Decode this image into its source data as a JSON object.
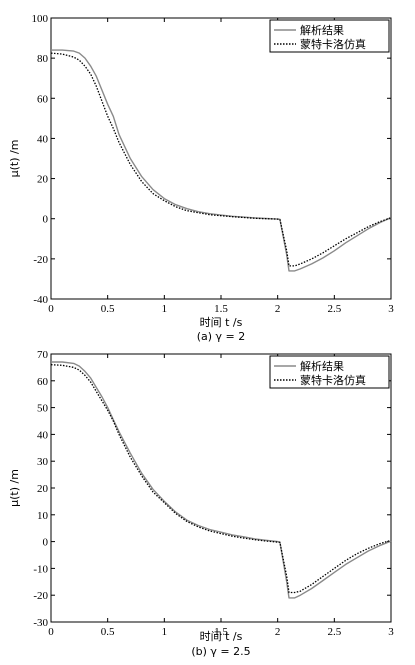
{
  "chart_data": [
    {
      "type": "line",
      "xlabel": "时间 t /s",
      "ylabel": "μ(t) /m",
      "caption": "(a) γ = 2",
      "xlim": [
        0,
        3
      ],
      "ylim": [
        -40,
        100
      ],
      "xticks": [
        "0",
        "0.5",
        "1",
        "1.5",
        "2",
        "2.5",
        "3"
      ],
      "yticks": [
        "-40",
        "-20",
        "0",
        "20",
        "40",
        "60",
        "80",
        "100"
      ],
      "legend_position": "top-right",
      "series": [
        {
          "name": "解析结果",
          "style": "solid",
          "color": "#8a8a8a",
          "x": [
            0,
            0.1,
            0.2,
            0.25,
            0.3,
            0.35,
            0.4,
            0.45,
            0.5,
            0.55,
            0.6,
            0.7,
            0.8,
            0.9,
            1.0,
            1.1,
            1.2,
            1.3,
            1.4,
            1.5,
            1.6,
            1.7,
            1.8,
            1.9,
            2.0,
            2.02,
            2.08,
            2.1,
            2.15,
            2.2,
            2.3,
            2.4,
            2.5,
            2.6,
            2.7,
            2.8,
            2.9,
            3.0
          ],
          "y": [
            84,
            84,
            83.5,
            82.5,
            80,
            76,
            71,
            64,
            57,
            51,
            42,
            30,
            21,
            14.5,
            10,
            7,
            5,
            3.5,
            2.5,
            1.8,
            1.2,
            0.8,
            0.4,
            0.1,
            -0.2,
            -0.3,
            -18,
            -26,
            -26,
            -25,
            -22.5,
            -19.5,
            -16,
            -12,
            -8.5,
            -5,
            -2,
            0.5
          ]
        },
        {
          "name": "蒙特卡洛仿真",
          "style": "dotted",
          "color": "#000000",
          "x": [
            0,
            0.1,
            0.2,
            0.25,
            0.3,
            0.35,
            0.4,
            0.45,
            0.5,
            0.55,
            0.6,
            0.7,
            0.8,
            0.9,
            1.0,
            1.1,
            1.2,
            1.3,
            1.4,
            1.5,
            1.6,
            1.7,
            1.8,
            1.9,
            2.0,
            2.02,
            2.08,
            2.1,
            2.15,
            2.2,
            2.3,
            2.4,
            2.5,
            2.6,
            2.7,
            2.8,
            2.9,
            3.0
          ],
          "y": [
            82.5,
            82,
            80.5,
            79,
            76,
            72,
            66,
            58.5,
            51,
            45,
            38,
            27,
            18.5,
            12.5,
            9,
            6,
            4,
            3,
            2,
            1.5,
            1,
            0.6,
            0.2,
            0,
            -0.2,
            -0.3,
            -16,
            -23.5,
            -23.5,
            -22.5,
            -20,
            -17,
            -13.5,
            -10,
            -7,
            -4,
            -1.5,
            0.5
          ]
        }
      ]
    },
    {
      "type": "line",
      "xlabel": "时间 t /s",
      "ylabel": "μ(t) /m",
      "caption": "(b) γ = 2.5",
      "xlim": [
        0,
        3
      ],
      "ylim": [
        -30,
        70
      ],
      "xticks": [
        "0",
        "0.5",
        "1",
        "1.5",
        "2",
        "2.5",
        "3"
      ],
      "yticks": [
        "-30",
        "-20",
        "-10",
        "0",
        "10",
        "20",
        "30",
        "40",
        "50",
        "60",
        "70"
      ],
      "legend_position": "top-right",
      "series": [
        {
          "name": "解析结果",
          "style": "solid",
          "color": "#8a8a8a",
          "x": [
            0,
            0.1,
            0.2,
            0.25,
            0.3,
            0.35,
            0.4,
            0.45,
            0.5,
            0.55,
            0.6,
            0.7,
            0.8,
            0.9,
            1.0,
            1.1,
            1.2,
            1.3,
            1.4,
            1.5,
            1.6,
            1.7,
            1.8,
            1.9,
            2.0,
            2.02,
            2.08,
            2.1,
            2.15,
            2.2,
            2.3,
            2.4,
            2.5,
            2.6,
            2.7,
            2.8,
            2.9,
            3.0
          ],
          "y": [
            67,
            67,
            66.5,
            65.5,
            63.5,
            61,
            57.5,
            54,
            50,
            45.5,
            41,
            33,
            25.5,
            19.5,
            15,
            11,
            8,
            6,
            4.5,
            3.5,
            2.5,
            1.8,
            1,
            0.5,
            0,
            -0.2,
            -15,
            -21,
            -21,
            -20,
            -17.5,
            -14.5,
            -11.5,
            -8.5,
            -6,
            -3.5,
            -1.5,
            0.2
          ]
        },
        {
          "name": "蒙特卡洛仿真",
          "style": "dotted",
          "color": "#000000",
          "x": [
            0,
            0.1,
            0.2,
            0.25,
            0.3,
            0.35,
            0.4,
            0.45,
            0.5,
            0.55,
            0.6,
            0.7,
            0.8,
            0.9,
            1.0,
            1.1,
            1.2,
            1.3,
            1.4,
            1.5,
            1.6,
            1.7,
            1.8,
            1.9,
            2.0,
            2.02,
            2.08,
            2.1,
            2.15,
            2.2,
            2.3,
            2.4,
            2.5,
            2.6,
            2.7,
            2.8,
            2.9,
            3.0
          ],
          "y": [
            66,
            65.8,
            65,
            64,
            62,
            59.5,
            56,
            52.5,
            49,
            45,
            40,
            31.5,
            24.5,
            18.5,
            14.5,
            10.5,
            7.5,
            5.5,
            4,
            3,
            2,
            1.3,
            0.7,
            0.2,
            -0.2,
            -0.3,
            -13,
            -19,
            -19,
            -18.5,
            -16,
            -13,
            -10,
            -7,
            -4.5,
            -2.5,
            -0.8,
            0.5
          ]
        }
      ]
    }
  ]
}
